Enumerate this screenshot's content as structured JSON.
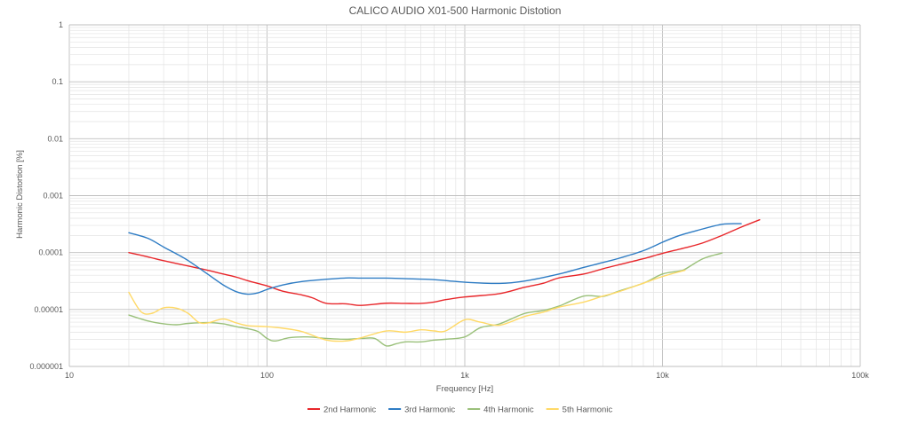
{
  "chart_data": {
    "type": "line",
    "title": "CALICO AUDIO X01-500 Harmonic Distotion",
    "xlabel": "Frequency [Hz]",
    "ylabel": "Harmonic Distortion [%]",
    "x_scale": "log",
    "y_scale": "log",
    "xlim": [
      10,
      100000
    ],
    "ylim": [
      1e-06,
      1
    ],
    "x_ticks": [
      {
        "value": 10,
        "label": "10"
      },
      {
        "value": 100,
        "label": "100"
      },
      {
        "value": 1000,
        "label": "1k"
      },
      {
        "value": 10000,
        "label": "10k"
      },
      {
        "value": 100000,
        "label": "100k"
      }
    ],
    "y_ticks": [
      {
        "value": 1,
        "label": "1"
      },
      {
        "value": 0.1,
        "label": "0.1"
      },
      {
        "value": 0.01,
        "label": "0.01"
      },
      {
        "value": 0.001,
        "label": "0.001"
      },
      {
        "value": 0.0001,
        "label": "0.0001"
      },
      {
        "value": 1e-05,
        "label": "0.00001"
      },
      {
        "value": 1e-06,
        "label": "0.000001"
      }
    ],
    "grid": true,
    "minor_grid": true,
    "legend_position": "bottom",
    "series": [
      {
        "name": "2nd Harmonic",
        "color": "#e8262a",
        "points": [
          [
            20,
            0.0001
          ],
          [
            25,
            8.4e-05
          ],
          [
            30,
            7.2e-05
          ],
          [
            40,
            5.8e-05
          ],
          [
            50,
            4.9e-05
          ],
          [
            60,
            4.2e-05
          ],
          [
            70,
            3.7e-05
          ],
          [
            80,
            3.2e-05
          ],
          [
            100,
            2.6e-05
          ],
          [
            120,
            2.1e-05
          ],
          [
            150,
            1.8e-05
          ],
          [
            170,
            1.6e-05
          ],
          [
            200,
            1.28e-05
          ],
          [
            250,
            1.26e-05
          ],
          [
            300,
            1.18e-05
          ],
          [
            400,
            1.29e-05
          ],
          [
            500,
            1.28e-05
          ],
          [
            600,
            1.28e-05
          ],
          [
            700,
            1.35e-05
          ],
          [
            800,
            1.49e-05
          ],
          [
            1000,
            1.66e-05
          ],
          [
            1500,
            1.9e-05
          ],
          [
            2000,
            2.45e-05
          ],
          [
            2500,
            2.9e-05
          ],
          [
            3000,
            3.6e-05
          ],
          [
            4000,
            4.2e-05
          ],
          [
            5000,
            5.2e-05
          ],
          [
            6000,
            6.1e-05
          ],
          [
            8000,
            7.8e-05
          ],
          [
            10000,
            9.7e-05
          ],
          [
            13000,
            0.000121
          ],
          [
            16000,
            0.000148
          ],
          [
            20000,
            0.0002
          ],
          [
            25000,
            0.00028
          ],
          [
            31000,
            0.000377
          ]
        ]
      },
      {
        "name": "3rd Harmonic",
        "color": "#2e7cc4",
        "points": [
          [
            20,
            0.000223
          ],
          [
            25,
            0.000178
          ],
          [
            30,
            0.000125
          ],
          [
            35,
            9.4e-05
          ],
          [
            40,
            7.2e-05
          ],
          [
            50,
            4.2e-05
          ],
          [
            60,
            2.7e-05
          ],
          [
            70,
            2.05e-05
          ],
          [
            80,
            1.86e-05
          ],
          [
            90,
            1.96e-05
          ],
          [
            100,
            2.25e-05
          ],
          [
            120,
            2.7e-05
          ],
          [
            150,
            3.1e-05
          ],
          [
            200,
            3.4e-05
          ],
          [
            250,
            3.58e-05
          ],
          [
            300,
            3.56e-05
          ],
          [
            400,
            3.56e-05
          ],
          [
            500,
            3.48e-05
          ],
          [
            700,
            3.35e-05
          ],
          [
            1000,
            3.02e-05
          ],
          [
            1500,
            2.87e-05
          ],
          [
            2000,
            3.15e-05
          ],
          [
            3000,
            4.2e-05
          ],
          [
            4000,
            5.5e-05
          ],
          [
            5000,
            6.7e-05
          ],
          [
            6000,
            7.9e-05
          ],
          [
            8000,
            0.000108
          ],
          [
            10000,
            0.000152
          ],
          [
            12000,
            0.000196
          ],
          [
            15000,
            0.000245
          ],
          [
            20000,
            0.000314
          ],
          [
            25000,
            0.000322
          ]
        ]
      },
      {
        "name": "4th Harmonic",
        "color": "#9ac07a",
        "points": [
          [
            20,
            8e-06
          ],
          [
            25,
            6.3e-06
          ],
          [
            30,
            5.6e-06
          ],
          [
            35,
            5.4e-06
          ],
          [
            40,
            5.7e-06
          ],
          [
            50,
            5.9e-06
          ],
          [
            60,
            5.6e-06
          ],
          [
            70,
            5e-06
          ],
          [
            80,
            4.6e-06
          ],
          [
            90,
            4.1e-06
          ],
          [
            100,
            3.1e-06
          ],
          [
            110,
            2.8e-06
          ],
          [
            130,
            3.2e-06
          ],
          [
            160,
            3.3e-06
          ],
          [
            200,
            3.1e-06
          ],
          [
            250,
            3e-06
          ],
          [
            300,
            3.1e-06
          ],
          [
            350,
            3.1e-06
          ],
          [
            400,
            2.3e-06
          ],
          [
            450,
            2.5e-06
          ],
          [
            500,
            2.7e-06
          ],
          [
            600,
            2.7e-06
          ],
          [
            700,
            2.9e-06
          ],
          [
            800,
            3e-06
          ],
          [
            1000,
            3.3e-06
          ],
          [
            1200,
            4.8e-06
          ],
          [
            1500,
            5.6e-06
          ],
          [
            2000,
            8.5e-06
          ],
          [
            2500,
            9.6e-06
          ],
          [
            3000,
            1.15e-05
          ],
          [
            4000,
            1.72e-05
          ],
          [
            5000,
            1.7e-05
          ],
          [
            6000,
            2.1e-05
          ],
          [
            8000,
            2.9e-05
          ],
          [
            10000,
            4.2e-05
          ],
          [
            12000,
            4.7e-05
          ],
          [
            13000,
            5.1e-05
          ],
          [
            16000,
            7.8e-05
          ],
          [
            20000,
            9.8e-05
          ]
        ]
      },
      {
        "name": "5th Harmonic",
        "color": "#ffd966",
        "points": [
          [
            20,
            2e-05
          ],
          [
            23,
            9.2e-06
          ],
          [
            26,
            8.5e-06
          ],
          [
            30,
            1.07e-05
          ],
          [
            35,
            1.05e-05
          ],
          [
            40,
            8.5e-06
          ],
          [
            45,
            6e-06
          ],
          [
            50,
            5.8e-06
          ],
          [
            60,
            6.8e-06
          ],
          [
            70,
            5.8e-06
          ],
          [
            80,
            5.2e-06
          ],
          [
            100,
            5e-06
          ],
          [
            120,
            4.7e-06
          ],
          [
            150,
            4.1e-06
          ],
          [
            200,
            2.9e-06
          ],
          [
            250,
            2.8e-06
          ],
          [
            300,
            3.2e-06
          ],
          [
            400,
            4.2e-06
          ],
          [
            500,
            4e-06
          ],
          [
            600,
            4.4e-06
          ],
          [
            700,
            4.2e-06
          ],
          [
            800,
            4.2e-06
          ],
          [
            1000,
            6.6e-06
          ],
          [
            1200,
            6e-06
          ],
          [
            1500,
            5.3e-06
          ],
          [
            2000,
            7.5e-06
          ],
          [
            2500,
            9e-06
          ],
          [
            3000,
            1.1e-05
          ],
          [
            4000,
            1.35e-05
          ],
          [
            5000,
            1.72e-05
          ],
          [
            6000,
            2.05e-05
          ],
          [
            8000,
            2.9e-05
          ],
          [
            10000,
            3.8e-05
          ],
          [
            13000,
            4.9e-05
          ]
        ]
      }
    ]
  }
}
